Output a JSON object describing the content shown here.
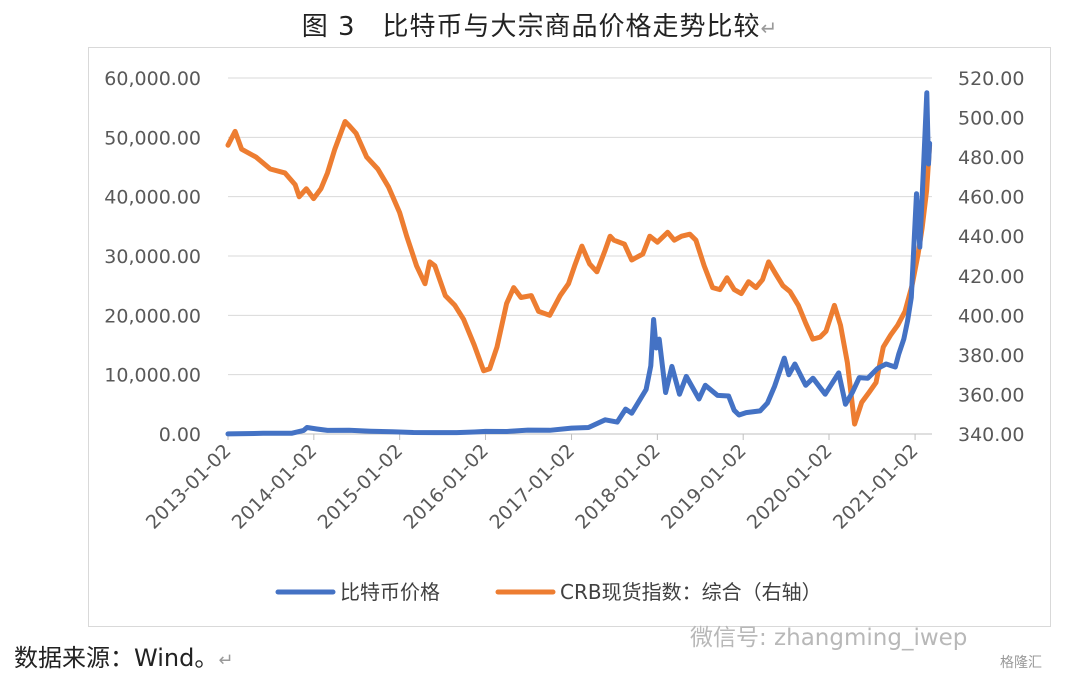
{
  "title": "图 3　比特币与大宗商品价格走势比较",
  "return_mark": "↵",
  "source": "数据来源：Wind。",
  "watermark": "微信号: zhangming_iwep",
  "watermark_logo": "格隆汇",
  "colors": {
    "bitcoin": "#4472C4",
    "crb": "#ED7D31",
    "axis_text": "#595959"
  },
  "chart_data": {
    "type": "line",
    "title": "图 3　比特币与大宗商品价格走势比较",
    "xlabel": "",
    "ylabel": "",
    "x_ticks": [
      "2013-01-02",
      "2014-01-02",
      "2015-01-02",
      "2016-01-02",
      "2017-01-02",
      "2018-01-02",
      "2019-01-02",
      "2020-01-02",
      "2021-01-02"
    ],
    "y_left": {
      "min": 0,
      "max": 60000,
      "ticks": [
        "0.00",
        "10,000.00",
        "20,000.00",
        "30,000.00",
        "40,000.00",
        "50,000.00",
        "60,000.00"
      ]
    },
    "y_right": {
      "min": 340,
      "max": 520,
      "ticks": [
        "340.00",
        "360.00",
        "380.00",
        "400.00",
        "420.00",
        "440.00",
        "460.00",
        "480.00",
        "500.00",
        "520.00"
      ]
    },
    "legend_position": "bottom",
    "series": [
      {
        "name": "比特币价格",
        "axis": "left",
        "points": [
          [
            "2013-01-02",
            13
          ],
          [
            "2013-06-01",
            110
          ],
          [
            "2013-10-01",
            130
          ],
          [
            "2013-11-20",
            600
          ],
          [
            "2013-12-04",
            1100
          ],
          [
            "2014-01-15",
            850
          ],
          [
            "2014-03-01",
            600
          ],
          [
            "2014-06-01",
            620
          ],
          [
            "2014-09-01",
            480
          ],
          [
            "2014-12-01",
            370
          ],
          [
            "2015-03-01",
            260
          ],
          [
            "2015-06-01",
            230
          ],
          [
            "2015-09-01",
            235
          ],
          [
            "2015-11-15",
            330
          ],
          [
            "2016-01-02",
            430
          ],
          [
            "2016-04-01",
            420
          ],
          [
            "2016-07-01",
            650
          ],
          [
            "2016-10-01",
            620
          ],
          [
            "2017-01-02",
            1000
          ],
          [
            "2017-03-15",
            1100
          ],
          [
            "2017-05-25",
            2400
          ],
          [
            "2017-07-15",
            2000
          ],
          [
            "2017-08-20",
            4200
          ],
          [
            "2017-09-15",
            3500
          ],
          [
            "2017-10-20",
            5800
          ],
          [
            "2017-11-15",
            7500
          ],
          [
            "2017-12-05",
            11500
          ],
          [
            "2017-12-17",
            19300
          ],
          [
            "2017-12-28",
            14500
          ],
          [
            "2018-01-10",
            16000
          ],
          [
            "2018-02-06",
            7000
          ],
          [
            "2018-03-05",
            11400
          ],
          [
            "2018-04-06",
            6700
          ],
          [
            "2018-05-05",
            9700
          ],
          [
            "2018-06-28",
            5900
          ],
          [
            "2018-07-25",
            8200
          ],
          [
            "2018-09-15",
            6500
          ],
          [
            "2018-11-01",
            6400
          ],
          [
            "2018-11-25",
            4000
          ],
          [
            "2018-12-15",
            3200
          ],
          [
            "2019-01-15",
            3600
          ],
          [
            "2019-03-15",
            3900
          ],
          [
            "2019-04-15",
            5200
          ],
          [
            "2019-05-15",
            8000
          ],
          [
            "2019-06-26",
            12800
          ],
          [
            "2019-07-15",
            10000
          ],
          [
            "2019-08-10",
            11800
          ],
          [
            "2019-09-25",
            8200
          ],
          [
            "2019-10-26",
            9400
          ],
          [
            "2019-12-17",
            6700
          ],
          [
            "2020-02-12",
            10300
          ],
          [
            "2020-03-12",
            5000
          ],
          [
            "2020-04-10",
            7000
          ],
          [
            "2020-05-10",
            9500
          ],
          [
            "2020-06-15",
            9400
          ],
          [
            "2020-07-25",
            11000
          ],
          [
            "2020-09-01",
            11800
          ],
          [
            "2020-10-10",
            11300
          ],
          [
            "2020-10-25",
            13500
          ],
          [
            "2020-11-15",
            16000
          ],
          [
            "2020-12-01",
            19000
          ],
          [
            "2020-12-17",
            23000
          ],
          [
            "2021-01-08",
            40500
          ],
          [
            "2021-01-22",
            31500
          ],
          [
            "2021-02-08",
            46000
          ],
          [
            "2021-02-21",
            57500
          ],
          [
            "2021-02-28",
            45500
          ],
          [
            "2021-03-05",
            49000
          ]
        ]
      },
      {
        "name": "CRB现货指数：综合（右轴）",
        "axis": "right",
        "points": [
          [
            "2013-01-02",
            486
          ],
          [
            "2013-02-01",
            493
          ],
          [
            "2013-03-01",
            484
          ],
          [
            "2013-05-01",
            480
          ],
          [
            "2013-07-01",
            474
          ],
          [
            "2013-09-01",
            472
          ],
          [
            "2013-10-15",
            466
          ],
          [
            "2013-11-01",
            460
          ],
          [
            "2013-12-01",
            464
          ],
          [
            "2014-01-01",
            459
          ],
          [
            "2014-02-01",
            464
          ],
          [
            "2014-03-01",
            472
          ],
          [
            "2014-04-01",
            484
          ],
          [
            "2014-05-15",
            498
          ],
          [
            "2014-06-01",
            496
          ],
          [
            "2014-07-01",
            492
          ],
          [
            "2014-08-15",
            480
          ],
          [
            "2014-10-01",
            474
          ],
          [
            "2014-11-15",
            465
          ],
          [
            "2015-01-02",
            452
          ],
          [
            "2015-02-01",
            440
          ],
          [
            "2015-03-15",
            425
          ],
          [
            "2015-04-20",
            416
          ],
          [
            "2015-05-10",
            427
          ],
          [
            "2015-06-01",
            425
          ],
          [
            "2015-07-15",
            410
          ],
          [
            "2015-08-25",
            405
          ],
          [
            "2015-10-01",
            398
          ],
          [
            "2015-11-15",
            385
          ],
          [
            "2015-12-25",
            372
          ],
          [
            "2016-01-20",
            373
          ],
          [
            "2016-02-20",
            384
          ],
          [
            "2016-04-01",
            406
          ],
          [
            "2016-05-01",
            414
          ],
          [
            "2016-06-01",
            409
          ],
          [
            "2016-07-15",
            410
          ],
          [
            "2016-08-15",
            402
          ],
          [
            "2016-10-01",
            400
          ],
          [
            "2016-11-15",
            410
          ],
          [
            "2016-12-20",
            416
          ],
          [
            "2017-01-15",
            425
          ],
          [
            "2017-02-15",
            435
          ],
          [
            "2017-03-20",
            426
          ],
          [
            "2017-04-20",
            422
          ],
          [
            "2017-05-25",
            433
          ],
          [
            "2017-06-15",
            440
          ],
          [
            "2017-07-01",
            438
          ],
          [
            "2017-08-15",
            436
          ],
          [
            "2017-09-15",
            428
          ],
          [
            "2017-11-01",
            431
          ],
          [
            "2017-12-01",
            440
          ],
          [
            "2018-01-02",
            437
          ],
          [
            "2018-02-15",
            442
          ],
          [
            "2018-03-15",
            438
          ],
          [
            "2018-04-15",
            440
          ],
          [
            "2018-05-20",
            441
          ],
          [
            "2018-06-15",
            438
          ],
          [
            "2018-07-20",
            425
          ],
          [
            "2018-08-25",
            414
          ],
          [
            "2018-09-25",
            413
          ],
          [
            "2018-10-25",
            419
          ],
          [
            "2018-11-25",
            413
          ],
          [
            "2018-12-25",
            411
          ],
          [
            "2019-01-25",
            417
          ],
          [
            "2019-02-25",
            414
          ],
          [
            "2019-03-25",
            418
          ],
          [
            "2019-04-20",
            427
          ],
          [
            "2019-05-20",
            421
          ],
          [
            "2019-06-20",
            415
          ],
          [
            "2019-07-20",
            412
          ],
          [
            "2019-08-25",
            405
          ],
          [
            "2019-09-25",
            396
          ],
          [
            "2019-10-25",
            388
          ],
          [
            "2019-11-25",
            389
          ],
          [
            "2019-12-20",
            392
          ],
          [
            "2020-01-25",
            405
          ],
          [
            "2020-02-20",
            395
          ],
          [
            "2020-03-20",
            376
          ],
          [
            "2020-04-20",
            345
          ],
          [
            "2020-05-20",
            356
          ],
          [
            "2020-06-20",
            361
          ],
          [
            "2020-07-20",
            366
          ],
          [
            "2020-08-20",
            384
          ],
          [
            "2020-09-20",
            390
          ],
          [
            "2020-10-20",
            395
          ],
          [
            "2020-11-20",
            402
          ],
          [
            "2020-12-20",
            415
          ],
          [
            "2021-01-15",
            431
          ],
          [
            "2021-02-01",
            444
          ],
          [
            "2021-02-20",
            463
          ],
          [
            "2021-03-05",
            486
          ]
        ]
      }
    ]
  }
}
